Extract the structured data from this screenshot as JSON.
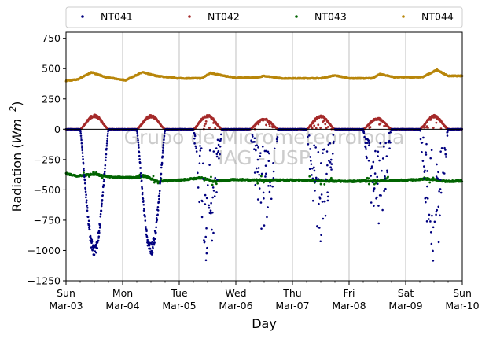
{
  "chart_data": {
    "type": "scatter",
    "xlabel": "Day",
    "ylabel_main": "Radiation (",
    "ylabel_unit": "Wm",
    "ylabel_exp": "−2",
    "ylabel_close": ")",
    "ylim": [
      -1250,
      800
    ],
    "yticks": [
      -1250,
      -1000,
      -750,
      -500,
      -250,
      0,
      250,
      500,
      750
    ],
    "xlim": [
      0,
      7
    ],
    "xticks": [
      {
        "x": 0,
        "day": "Sun",
        "date": "Mar-03"
      },
      {
        "x": 1,
        "day": "Mon",
        "date": "Mar-04"
      },
      {
        "x": 2,
        "day": "Tue",
        "date": "Mar-05"
      },
      {
        "x": 3,
        "day": "Wed",
        "date": "Mar-06"
      },
      {
        "x": 4,
        "day": "Thu",
        "date": "Mar-07"
      },
      {
        "x": 5,
        "day": "Fri",
        "date": "Mar-08"
      },
      {
        "x": 6,
        "day": "Sat",
        "date": "Mar-09"
      },
      {
        "x": 7,
        "day": "Sun",
        "date": "Mar-10"
      }
    ],
    "grid": "vertical",
    "zero_line": true,
    "legend_position": "top-outside",
    "watermark": [
      "Grupo de Micrometeorologia",
      "IAG - USP"
    ],
    "series": [
      {
        "name": "NT041",
        "color": "#00007f",
        "pattern": "shortwave_net",
        "night": 0,
        "daily_min": [
          -1030,
          -1020,
          -1140,
          -860,
          -1010,
          -800,
          -1090
        ]
      },
      {
        "name": "NT042",
        "color": "#a52a2a",
        "pattern": "shortwave_up",
        "night": 0,
        "daily_max": [
          115,
          112,
          115,
          85,
          110,
          90,
          112
        ]
      },
      {
        "name": "NT043",
        "color": "#006400",
        "pattern": "longwave_net",
        "base": -400,
        "points_x": [
          0,
          0.2,
          0.5,
          0.8,
          1.2,
          1.4,
          1.6,
          2.0,
          2.4,
          2.6,
          3.0,
          3.5,
          4.0,
          4.5,
          5.0,
          5.5,
          6.0,
          6.4,
          6.7,
          7.0
        ],
        "points_y": [
          -365,
          -385,
          -370,
          -395,
          -400,
          -385,
          -430,
          -420,
          -400,
          -430,
          -415,
          -420,
          -420,
          -425,
          -430,
          -425,
          -420,
          -410,
          -430,
          -425
        ]
      },
      {
        "name": "NT044",
        "color": "#b8860b",
        "pattern": "longwave_in",
        "points_x": [
          0,
          0.2,
          0.45,
          0.7,
          0.9,
          1.05,
          1.35,
          1.6,
          2.0,
          2.4,
          2.55,
          2.8,
          3.0,
          3.35,
          3.5,
          3.8,
          4.0,
          4.5,
          4.75,
          5.0,
          5.4,
          5.55,
          5.8,
          6.0,
          6.3,
          6.55,
          6.75,
          7.0
        ],
        "points_y": [
          400,
          410,
          470,
          430,
          415,
          405,
          470,
          440,
          420,
          420,
          465,
          440,
          425,
          425,
          440,
          420,
          420,
          420,
          445,
          420,
          420,
          455,
          430,
          430,
          430,
          490,
          440,
          440
        ]
      }
    ]
  }
}
